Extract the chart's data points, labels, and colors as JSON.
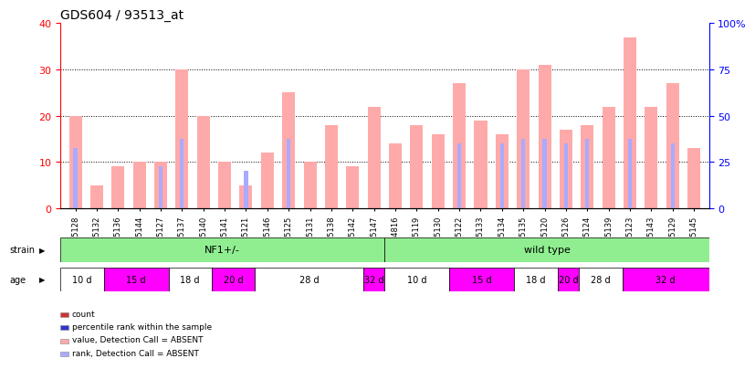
{
  "title": "GDS604 / 93513_at",
  "samples": [
    "GSM25128",
    "GSM25132",
    "GSM25136",
    "GSM25144",
    "GSM25127",
    "GSM25137",
    "GSM25140",
    "GSM25141",
    "GSM25121",
    "GSM25146",
    "GSM25125",
    "GSM25131",
    "GSM25138",
    "GSM25142",
    "GSM25147",
    "GSM24816",
    "GSM25119",
    "GSM25130",
    "GSM25122",
    "GSM25133",
    "GSM25134",
    "GSM25135",
    "GSM25120",
    "GSM25126",
    "GSM25124",
    "GSM25139",
    "GSM25123",
    "GSM25143",
    "GSM25129",
    "GSM25145"
  ],
  "count_values": [
    20,
    5,
    9,
    10,
    10,
    30,
    20,
    10,
    5,
    12,
    25,
    10,
    18,
    9,
    22,
    14,
    18,
    16,
    27,
    19,
    16,
    30,
    31,
    17,
    18,
    22,
    37,
    22,
    27,
    13
  ],
  "rank_values": [
    13,
    0,
    0,
    0,
    9,
    15,
    0,
    0,
    8,
    0,
    15,
    0,
    0,
    0,
    0,
    0,
    0,
    0,
    14,
    0,
    14,
    15,
    15,
    14,
    15,
    0,
    15,
    0,
    14,
    0
  ],
  "color_count": "#cc3333",
  "color_rank": "#3333cc",
  "color_absent_count": "#ffaaaa",
  "color_absent_rank": "#aaaaff",
  "ylim_left": [
    0,
    40
  ],
  "ylim_right": [
    0,
    100
  ],
  "yticks_left": [
    0,
    10,
    20,
    30,
    40
  ],
  "yticks_right": [
    0,
    25,
    50,
    75,
    100
  ],
  "bar_width": 0.6,
  "strain_groups": [
    {
      "label": "NF1+/-",
      "start": 0,
      "end": 14,
      "color": "#90EE90"
    },
    {
      "label": "wild type",
      "start": 15,
      "end": 29,
      "color": "#90EE90"
    }
  ],
  "age_groups": [
    {
      "label": "10 d",
      "start": 0,
      "end": 1,
      "color": "#FFFFFF"
    },
    {
      "label": "15 d",
      "start": 2,
      "end": 4,
      "color": "#FF00FF"
    },
    {
      "label": "18 d",
      "start": 5,
      "end": 6,
      "color": "#FFFFFF"
    },
    {
      "label": "20 d",
      "start": 7,
      "end": 8,
      "color": "#FF00FF"
    },
    {
      "label": "28 d",
      "start": 9,
      "end": 13,
      "color": "#FFFFFF"
    },
    {
      "label": "32 d",
      "start": 14,
      "end": 14,
      "color": "#FF00FF"
    },
    {
      "label": "10 d",
      "start": 15,
      "end": 17,
      "color": "#FFFFFF"
    },
    {
      "label": "15 d",
      "start": 18,
      "end": 20,
      "color": "#FF00FF"
    },
    {
      "label": "18 d",
      "start": 21,
      "end": 22,
      "color": "#FFFFFF"
    },
    {
      "label": "20 d",
      "start": 23,
      "end": 23,
      "color": "#FF00FF"
    },
    {
      "label": "28 d",
      "start": 24,
      "end": 25,
      "color": "#FFFFFF"
    },
    {
      "label": "32 d",
      "start": 26,
      "end": 29,
      "color": "#FF00FF"
    }
  ],
  "legend_items": [
    {
      "color": "#cc3333",
      "label": "count"
    },
    {
      "color": "#3333cc",
      "label": "percentile rank within the sample"
    },
    {
      "color": "#ffaaaa",
      "label": "value, Detection Call = ABSENT"
    },
    {
      "color": "#aaaaff",
      "label": "rank, Detection Call = ABSENT"
    }
  ]
}
